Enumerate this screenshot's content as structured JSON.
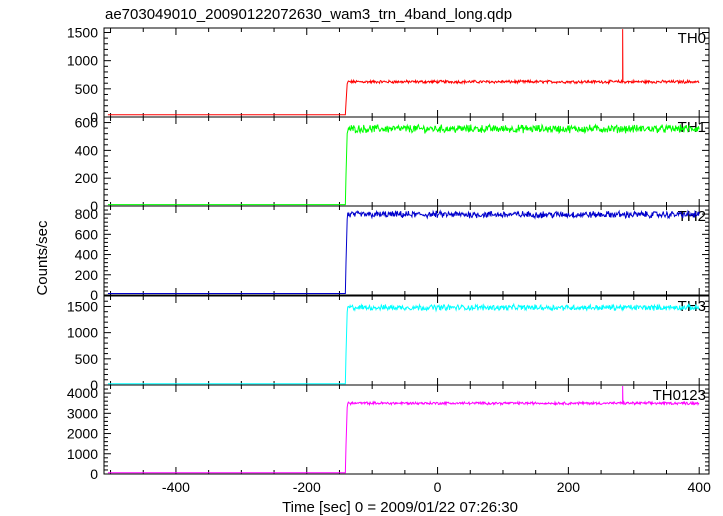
{
  "chart_data": {
    "type": "line",
    "title": "ae703049010_20090122072630_wam3_trn_4band_long.qdp",
    "xlabel": "Time [sec] 0 = 2009/01/22 07:26:30",
    "ylabel": "Counts/sec",
    "xlim": [
      -510,
      415
    ],
    "xticks": [
      -400,
      -200,
      0,
      200,
      400
    ],
    "onset_x": -140,
    "panels": [
      {
        "label": "TH0",
        "color": "#ff0000",
        "ylim": [
          0,
          1580
        ],
        "yticks": [
          0,
          500,
          1000,
          1500
        ],
        "pre_level": 40,
        "post_level": 625,
        "noise": 22,
        "spike": {
          "x": 283,
          "y": 1560
        }
      },
      {
        "label": "TH1",
        "color": "#00ff00",
        "ylim": [
          0,
          640
        ],
        "yticks": [
          0,
          200,
          400,
          600
        ],
        "pre_level": 10,
        "post_level": 555,
        "noise": 24
      },
      {
        "label": "TH2",
        "color": "#0000cc",
        "ylim": [
          0,
          880
        ],
        "yticks": [
          0,
          200,
          400,
          600,
          800
        ],
        "pre_level": 15,
        "post_level": 795,
        "noise": 28
      },
      {
        "label": "TH3",
        "color": "#00ffff",
        "ylim": [
          0,
          1700
        ],
        "yticks": [
          0,
          500,
          1000,
          1500
        ],
        "pre_level": 25,
        "post_level": 1480,
        "noise": 45
      },
      {
        "label": "TH0123",
        "color": "#ff00ff",
        "ylim": [
          0,
          4400
        ],
        "yticks": [
          0,
          1000,
          2000,
          3000,
          4000
        ],
        "pre_level": 60,
        "post_level": 3500,
        "noise": 55,
        "spike": {
          "x": 283,
          "y": 4350
        }
      }
    ]
  }
}
